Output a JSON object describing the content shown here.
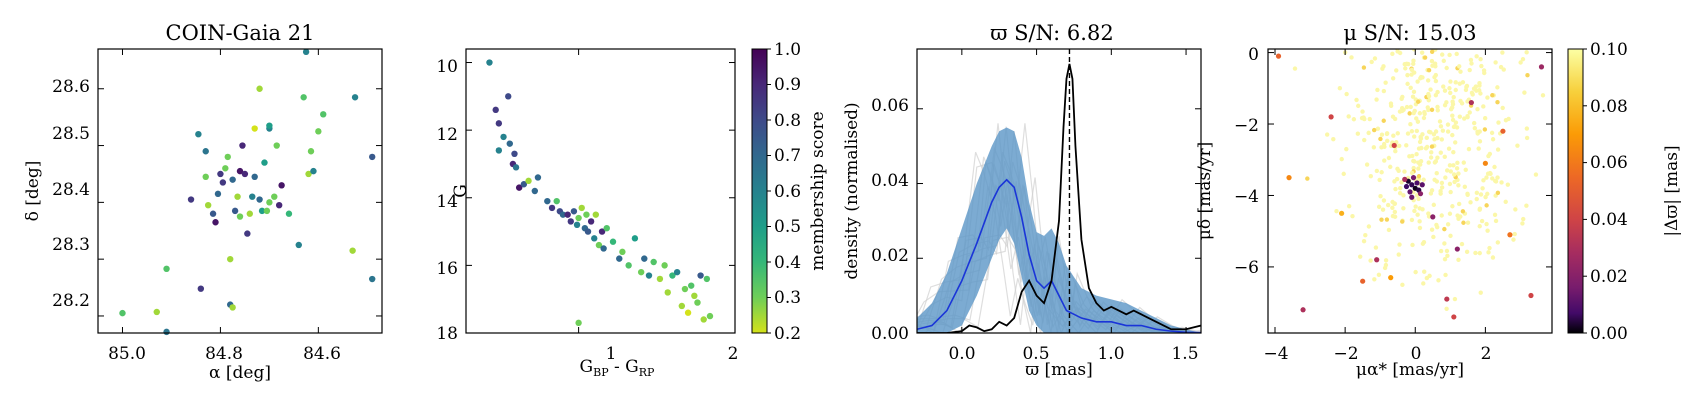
{
  "chart_data": [
    {
      "type": "scatter",
      "title": "COIN-Gaia 21",
      "xlabel": "α [deg]",
      "ylabel": "δ [deg]",
      "xlim": [
        85.05,
        84.47
      ],
      "ylim": [
        28.17,
        28.67
      ],
      "xticks": [
        85.0,
        84.8,
        84.6
      ],
      "xtick_labels": [
        "85.0",
        "84.8",
        "84.6"
      ],
      "yticks": [
        28.2,
        28.3,
        28.4,
        28.5,
        28.6
      ],
      "ytick_labels": [
        "28.2",
        "28.3",
        "28.4",
        "28.5",
        "28.6"
      ],
      "color_by": "membership score",
      "points": [
        [
          85.0,
          28.205,
          0.35
        ],
        [
          84.93,
          28.207,
          0.25
        ],
        [
          84.91,
          28.172,
          0.65
        ],
        [
          84.91,
          28.283,
          0.35
        ],
        [
          84.86,
          28.405,
          0.85
        ],
        [
          84.84,
          28.248,
          0.85
        ],
        [
          84.845,
          28.52,
          0.6
        ],
        [
          84.83,
          28.49,
          0.65
        ],
        [
          84.83,
          28.445,
          0.3
        ],
        [
          84.825,
          28.395,
          0.25
        ],
        [
          84.815,
          28.38,
          0.75
        ],
        [
          84.81,
          28.365,
          0.95
        ],
        [
          84.8,
          28.45,
          0.85
        ],
        [
          84.805,
          28.415,
          0.7
        ],
        [
          84.795,
          28.435,
          0.85
        ],
        [
          84.79,
          28.46,
          0.3
        ],
        [
          84.785,
          28.48,
          0.3
        ],
        [
          84.78,
          28.3,
          0.25
        ],
        [
          84.78,
          28.22,
          0.7
        ],
        [
          84.775,
          28.215,
          0.25
        ],
        [
          84.775,
          28.44,
          0.7
        ],
        [
          84.77,
          28.385,
          0.75
        ],
        [
          84.765,
          28.41,
          0.25
        ],
        [
          84.76,
          28.375,
          0.3
        ],
        [
          84.76,
          28.455,
          0.95
        ],
        [
          84.755,
          28.5,
          0.9
        ],
        [
          84.75,
          28.45,
          0.9
        ],
        [
          84.745,
          28.345,
          0.85
        ],
        [
          84.74,
          28.38,
          0.25
        ],
        [
          84.735,
          28.41,
          0.6
        ],
        [
          84.73,
          28.53,
          0.2
        ],
        [
          84.73,
          28.445,
          0.7
        ],
        [
          84.72,
          28.6,
          0.25
        ],
        [
          84.72,
          28.405,
          0.7
        ],
        [
          84.715,
          28.385,
          0.5
        ],
        [
          84.71,
          28.47,
          0.5
        ],
        [
          84.705,
          28.385,
          0.3
        ],
        [
          84.7,
          28.53,
          0.6
        ],
        [
          84.7,
          28.535,
          0.5
        ],
        [
          84.7,
          28.4,
          0.3
        ],
        [
          84.69,
          28.41,
          0.3
        ],
        [
          84.685,
          28.5,
          0.3
        ],
        [
          84.68,
          28.395,
          0.9
        ],
        [
          84.675,
          28.43,
          0.95
        ],
        [
          84.66,
          28.38,
          0.4
        ],
        [
          84.64,
          28.325,
          0.6
        ],
        [
          84.63,
          28.585,
          0.35
        ],
        [
          84.625,
          28.665,
          0.6
        ],
        [
          84.62,
          28.45,
          0.25
        ],
        [
          84.615,
          28.49,
          0.3
        ],
        [
          84.61,
          28.455,
          0.6
        ],
        [
          84.6,
          28.525,
          0.3
        ],
        [
          84.59,
          28.555,
          0.35
        ],
        [
          84.53,
          28.315,
          0.25
        ],
        [
          84.525,
          28.585,
          0.6
        ],
        [
          84.49,
          28.48,
          0.75
        ],
        [
          84.49,
          28.265,
          0.65
        ]
      ]
    },
    {
      "type": "scatter",
      "title": "",
      "xlabel": "G_BP - G_RP",
      "ylabel": "G",
      "xlim": [
        0.28,
        2.0
      ],
      "ylim": [
        18.0,
        9.6
      ],
      "xticks": [
        1,
        2
      ],
      "xtick_labels": [
        "1",
        "2"
      ],
      "yticks": [
        10,
        12,
        14,
        16,
        18
      ],
      "ytick_labels": [
        "10",
        "12",
        "14",
        "16",
        "18"
      ],
      "color_by": "membership score",
      "points": [
        [
          0.43,
          10.0,
          0.6
        ],
        [
          0.47,
          11.4,
          0.85
        ],
        [
          0.49,
          11.8,
          0.85
        ],
        [
          0.49,
          12.6,
          0.6
        ],
        [
          0.52,
          12.2,
          0.6
        ],
        [
          0.55,
          11.0,
          0.8
        ],
        [
          0.56,
          12.4,
          0.7
        ],
        [
          0.58,
          13.0,
          0.9
        ],
        [
          0.59,
          12.7,
          0.8
        ],
        [
          0.6,
          13.1,
          0.65
        ],
        [
          0.62,
          13.7,
          0.95
        ],
        [
          0.65,
          13.6,
          0.75
        ],
        [
          0.68,
          13.5,
          0.25
        ],
        [
          0.72,
          13.8,
          0.7
        ],
        [
          0.74,
          13.4,
          0.7
        ],
        [
          0.8,
          14.1,
          0.7
        ],
        [
          0.83,
          14.3,
          0.85
        ],
        [
          0.86,
          14.1,
          0.35
        ],
        [
          0.88,
          14.4,
          0.8
        ],
        [
          0.9,
          14.5,
          0.7
        ],
        [
          0.93,
          14.5,
          0.9
        ],
        [
          0.95,
          14.7,
          0.85
        ],
        [
          0.97,
          14.4,
          0.75
        ],
        [
          0.99,
          14.8,
          0.6
        ],
        [
          1.0,
          14.6,
          0.3
        ],
        [
          1.02,
          14.3,
          0.25
        ],
        [
          1.04,
          14.9,
          0.7
        ],
        [
          1.05,
          14.5,
          0.3
        ],
        [
          1.06,
          15.0,
          0.75
        ],
        [
          1.08,
          14.7,
          0.9
        ],
        [
          1.1,
          15.2,
          0.6
        ],
        [
          1.11,
          14.5,
          0.25
        ],
        [
          1.13,
          15.4,
          0.3
        ],
        [
          1.15,
          15.0,
          0.9
        ],
        [
          1.16,
          15.5,
          0.7
        ],
        [
          1.18,
          14.9,
          0.35
        ],
        [
          1.22,
          15.3,
          0.4
        ],
        [
          1.26,
          15.8,
          0.7
        ],
        [
          1.28,
          15.6,
          0.3
        ],
        [
          1.32,
          16.0,
          0.35
        ],
        [
          1.36,
          15.2,
          0.5
        ],
        [
          1.4,
          16.2,
          0.3
        ],
        [
          1.42,
          15.8,
          0.7
        ],
        [
          1.45,
          16.3,
          0.6
        ],
        [
          1.48,
          15.9,
          0.35
        ],
        [
          1.52,
          16.4,
          0.25
        ],
        [
          1.55,
          16.0,
          0.3
        ],
        [
          1.57,
          16.8,
          0.25
        ],
        [
          1.6,
          16.3,
          0.4
        ],
        [
          1.63,
          16.2,
          0.6
        ],
        [
          1.66,
          17.2,
          0.25
        ],
        [
          1.68,
          16.7,
          0.3
        ],
        [
          1.7,
          17.4,
          0.2
        ],
        [
          1.72,
          16.6,
          0.35
        ],
        [
          1.74,
          16.9,
          0.25
        ],
        [
          1.76,
          17.1,
          0.3
        ],
        [
          1.78,
          16.3,
          0.75
        ],
        [
          1.8,
          17.6,
          0.25
        ],
        [
          1.82,
          16.4,
          0.35
        ],
        [
          1.84,
          17.5,
          0.3
        ],
        [
          1.0,
          17.7,
          0.3
        ]
      ],
      "colorbar": {
        "label": "membership score",
        "min": 0.2,
        "max": 1.0,
        "ticks": [
          0.2,
          0.3,
          0.4,
          0.5,
          0.6,
          0.7,
          0.8,
          0.9,
          1.0
        ],
        "tick_labels": [
          "0.2",
          "0.3",
          "0.4",
          "0.5",
          "0.6",
          "0.7",
          "0.8",
          "0.9",
          "1.0"
        ]
      }
    },
    {
      "type": "line",
      "title": "ϖ S/N: 6.82",
      "xlabel": "ϖ [mas]",
      "ylabel": "density (normalised)",
      "xlim": [
        -0.3,
        1.6
      ],
      "ylim": [
        0.0,
        0.076
      ],
      "xticks": [
        0.0,
        0.5,
        1.0,
        1.5
      ],
      "xtick_labels": [
        "0.0",
        "0.5",
        "1.0",
        "1.5"
      ],
      "yticks": [
        0.0,
        0.02,
        0.04,
        0.06
      ],
      "ytick_labels": [
        "0.00",
        "0.02",
        "0.04",
        "0.06"
      ],
      "vline_x": 0.72,
      "series": [
        {
          "name": "mean density",
          "x": [
            -0.3,
            -0.2,
            -0.1,
            0.0,
            0.1,
            0.2,
            0.25,
            0.3,
            0.35,
            0.4,
            0.45,
            0.5,
            0.55,
            0.6,
            0.65,
            0.7,
            0.8,
            0.9,
            1.0,
            1.1,
            1.2,
            1.3,
            1.4,
            1.5,
            1.6
          ],
          "values": [
            0.001,
            0.002,
            0.006,
            0.014,
            0.024,
            0.035,
            0.039,
            0.041,
            0.039,
            0.031,
            0.021,
            0.014,
            0.012,
            0.014,
            0.01,
            0.006,
            0.004,
            0.003,
            0.003,
            0.002,
            0.002,
            0.001,
            0.0005,
            0.0002,
            0.0001
          ]
        },
        {
          "name": "band lower",
          "x": [
            -0.3,
            -0.2,
            -0.1,
            0.0,
            0.1,
            0.2,
            0.25,
            0.3,
            0.35,
            0.4,
            0.45,
            0.5,
            0.55,
            0.6,
            0.65,
            0.7,
            0.8,
            0.9,
            1.0,
            1.1,
            1.2,
            1.3,
            1.4,
            1.5,
            1.6
          ],
          "values": [
            0.0,
            0.0,
            0.0,
            0.002,
            0.01,
            0.02,
            0.025,
            0.028,
            0.024,
            0.015,
            0.006,
            0.002,
            0.0,
            0.0,
            0.0,
            0.0,
            0.0,
            0.0,
            0.0,
            0.0,
            0.0,
            0.0,
            0.0,
            0.0,
            0.0
          ]
        },
        {
          "name": "band upper",
          "x": [
            -0.3,
            -0.2,
            -0.1,
            0.0,
            0.1,
            0.2,
            0.25,
            0.3,
            0.35,
            0.4,
            0.45,
            0.5,
            0.55,
            0.6,
            0.65,
            0.7,
            0.8,
            0.9,
            1.0,
            1.1,
            1.2,
            1.3,
            1.4,
            1.5,
            1.6
          ],
          "values": [
            0.004,
            0.008,
            0.016,
            0.028,
            0.04,
            0.05,
            0.054,
            0.055,
            0.054,
            0.047,
            0.035,
            0.027,
            0.026,
            0.028,
            0.024,
            0.018,
            0.012,
            0.01,
            0.009,
            0.008,
            0.006,
            0.004,
            0.002,
            0.001,
            0.0
          ]
        },
        {
          "name": "reference density",
          "x": [
            -0.3,
            -0.1,
            0.0,
            0.05,
            0.1,
            0.15,
            0.2,
            0.25,
            0.3,
            0.35,
            0.4,
            0.45,
            0.5,
            0.55,
            0.6,
            0.65,
            0.68,
            0.7,
            0.72,
            0.74,
            0.76,
            0.8,
            0.85,
            0.9,
            0.95,
            1.0,
            1.05,
            1.1,
            1.15,
            1.2,
            1.3,
            1.4,
            1.5,
            1.6
          ],
          "values": [
            0.0,
            0.0,
            0.0005,
            0.002,
            0.0015,
            0.0005,
            0.001,
            0.003,
            0.002,
            0.004,
            0.011,
            0.014,
            0.01,
            0.008,
            0.014,
            0.03,
            0.055,
            0.068,
            0.072,
            0.068,
            0.05,
            0.025,
            0.012,
            0.008,
            0.006,
            0.007,
            0.006,
            0.005,
            0.006,
            0.005,
            0.003,
            0.001,
            0.001,
            0.002
          ]
        }
      ]
    },
    {
      "type": "scatter",
      "title": "μ S/N: 15.03",
      "xlabel": "μα* [mas/yr]",
      "ylabel": "μδ [mas/yr]",
      "xlim": [
        -4.2,
        3.9
      ],
      "ylim": [
        -7.85,
        0.1
      ],
      "xticks": [
        -4,
        -2,
        0,
        2
      ],
      "xtick_labels": [
        "−4",
        "−2",
        "0",
        "2"
      ],
      "yticks": [
        0,
        -2,
        -4,
        -6
      ],
      "ytick_labels": [
        "0",
        "−2",
        "−4",
        "−6"
      ],
      "color_by": "|Δϖ| [mas]",
      "points_dark": [
        [
          -0.2,
          -3.6,
          0.005
        ],
        [
          -0.1,
          -3.7,
          0.01
        ],
        [
          0.0,
          -3.8,
          0.003
        ],
        [
          -0.15,
          -3.9,
          0.02
        ],
        [
          0.05,
          -3.65,
          0.015
        ],
        [
          -0.05,
          -3.5,
          0.025
        ],
        [
          0.1,
          -3.85,
          0.008
        ],
        [
          -0.25,
          -3.75,
          0.012
        ],
        [
          0.15,
          -3.95,
          0.03
        ],
        [
          -0.3,
          -3.55,
          0.04
        ],
        [
          0.2,
          -3.7,
          0.018
        ],
        [
          -0.1,
          -4.05,
          0.022
        ],
        [
          -2.4,
          -1.8,
          0.05
        ],
        [
          1.2,
          -5.5,
          0.03
        ],
        [
          -3.2,
          -7.2,
          0.04
        ],
        [
          2.0,
          -3.1,
          0.07
        ],
        [
          3.3,
          -6.8,
          0.05
        ],
        [
          -1.5,
          -6.4,
          0.06
        ],
        [
          0.9,
          -6.9,
          0.045
        ],
        [
          3.6,
          -0.4,
          0.035
        ],
        [
          -3.9,
          -0.1,
          0.06
        ],
        [
          -2.1,
          -4.5,
          0.08
        ],
        [
          1.6,
          -1.4,
          0.04
        ],
        [
          -0.6,
          -2.6,
          0.05
        ],
        [
          2.7,
          -5.1,
          0.065
        ],
        [
          -3.6,
          -3.5,
          0.07
        ],
        [
          1.1,
          -7.4,
          0.05
        ],
        [
          -1.1,
          -5.8,
          0.04
        ],
        [
          0.5,
          -4.6,
          0.03
        ],
        [
          -0.7,
          -6.3,
          0.075
        ],
        [
          2.5,
          -2.2,
          0.06
        ]
      ],
      "colorbar": {
        "label": "|Δϖ| [mas]",
        "min": 0.0,
        "max": 0.1,
        "ticks": [
          0.0,
          0.02,
          0.04,
          0.06,
          0.08,
          0.1
        ],
        "tick_labels": [
          "0.00",
          "0.02",
          "0.04",
          "0.06",
          "0.08",
          "0.10"
        ]
      }
    }
  ]
}
